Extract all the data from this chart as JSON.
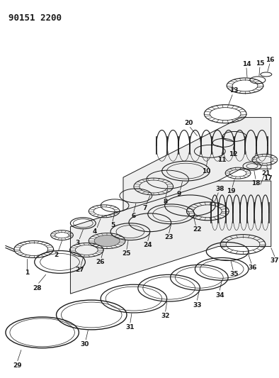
{
  "title": "90151 2200",
  "bg": "#ffffff",
  "lc": "#1a1a1a",
  "fig_w": 3.94,
  "fig_h": 5.33,
  "dpi": 100
}
